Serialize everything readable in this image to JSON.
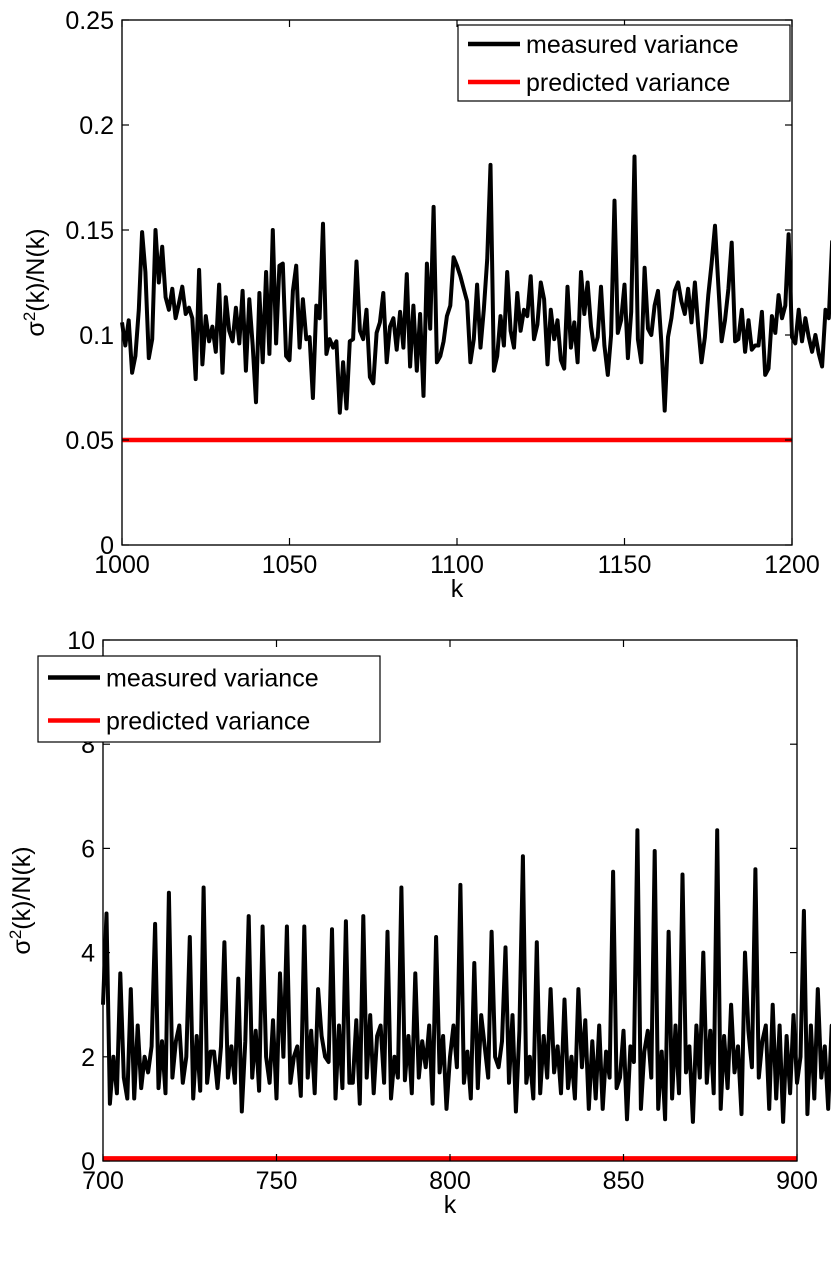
{
  "chart_data": [
    {
      "type": "line",
      "xlabel": "k",
      "ylabel_main": "σ",
      "ylabel_sup": "2",
      "ylabel_rest": "(k)/N(k)",
      "xlim": [
        1000,
        1200
      ],
      "ylim": [
        0,
        0.25
      ],
      "xticks": [
        1000,
        1050,
        1100,
        1150,
        1200
      ],
      "yticks": [
        0,
        0.05,
        0.1,
        0.15,
        0.2,
        0.25
      ],
      "ytick_labels": [
        "0",
        "0.05",
        "0.1",
        "0.15",
        "0.2",
        "0.25"
      ],
      "legend_position": "top-right",
      "series": [
        {
          "name": "measured variance",
          "color": "#000000",
          "x_start": 1000,
          "x_step": 1,
          "values": [
            0.106,
            0.095,
            0.107,
            0.082,
            0.09,
            0.112,
            0.149,
            0.13,
            0.089,
            0.098,
            0.15,
            0.125,
            0.142,
            0.118,
            0.112,
            0.122,
            0.108,
            0.115,
            0.123,
            0.11,
            0.113,
            0.108,
            0.079,
            0.131,
            0.086,
            0.109,
            0.097,
            0.104,
            0.092,
            0.124,
            0.082,
            0.118,
            0.102,
            0.097,
            0.113,
            0.096,
            0.121,
            0.083,
            0.117,
            0.095,
            0.068,
            0.12,
            0.087,
            0.13,
            0.091,
            0.15,
            0.096,
            0.133,
            0.134,
            0.09,
            0.088,
            0.121,
            0.133,
            0.094,
            0.117,
            0.098,
            0.099,
            0.07,
            0.114,
            0.108,
            0.153,
            0.091,
            0.098,
            0.094,
            0.097,
            0.063,
            0.087,
            0.065,
            0.097,
            0.098,
            0.135,
            0.102,
            0.098,
            0.112,
            0.08,
            0.077,
            0.101,
            0.106,
            0.12,
            0.087,
            0.104,
            0.108,
            0.093,
            0.111,
            0.094,
            0.129,
            0.085,
            0.114,
            0.083,
            0.11,
            0.071,
            0.134,
            0.103,
            0.161,
            0.087,
            0.09,
            0.097,
            0.109,
            0.114,
            0.137,
            0.133,
            0.128,
            0.122,
            0.116,
            0.087,
            0.098,
            0.124,
            0.094,
            0.112,
            0.136,
            0.181,
            0.083,
            0.09,
            0.109,
            0.095,
            0.13,
            0.102,
            0.094,
            0.12,
            0.102,
            0.112,
            0.109,
            0.128,
            0.098,
            0.105,
            0.125,
            0.117,
            0.086,
            0.112,
            0.098,
            0.107,
            0.088,
            0.084,
            0.123,
            0.094,
            0.106,
            0.087,
            0.13,
            0.11,
            0.125,
            0.104,
            0.093,
            0.099,
            0.123,
            0.095,
            0.081,
            0.1,
            0.164,
            0.101,
            0.107,
            0.124,
            0.089,
            0.111,
            0.185,
            0.098,
            0.087,
            0.132,
            0.103,
            0.1,
            0.114,
            0.121,
            0.096,
            0.064,
            0.099,
            0.108,
            0.121,
            0.125,
            0.116,
            0.11,
            0.122,
            0.106,
            0.125,
            0.104,
            0.087,
            0.099,
            0.119,
            0.134,
            0.152,
            0.124,
            0.097,
            0.107,
            0.122,
            0.144,
            0.097,
            0.098,
            0.112,
            0.092,
            0.107,
            0.093,
            0.095,
            0.095,
            0.111,
            0.081,
            0.084,
            0.109,
            0.101,
            0.119,
            0.108,
            0.114,
            0.148,
            0.099,
            0.096,
            0.112,
            0.097,
            0.108,
            0.099,
            0.092,
            0.1,
            0.091,
            0.085,
            0.112,
            0.108,
            0.145
          ]
        },
        {
          "name": "predicted variance",
          "color": "#ff0000",
          "x": [
            1000,
            1200
          ],
          "values": [
            0.05,
            0.05
          ]
        }
      ]
    },
    {
      "type": "line",
      "xlabel": "k",
      "ylabel_main": "σ",
      "ylabel_sup": "2",
      "ylabel_rest": "(k)/N(k)",
      "xlim": [
        700,
        900
      ],
      "ylim": [
        0,
        10
      ],
      "xticks": [
        700,
        750,
        800,
        850,
        900
      ],
      "yticks": [
        0,
        2,
        4,
        6,
        8,
        10
      ],
      "ytick_labels": [
        "0",
        "2",
        "4",
        "6",
        "8",
        "10"
      ],
      "legend_position": "top-left",
      "series": [
        {
          "name": "measured variance",
          "color": "#000000",
          "x_start": 700,
          "x_step": 1,
          "values": [
            3.0,
            4.75,
            1.1,
            2.0,
            1.3,
            3.6,
            1.6,
            1.2,
            3.3,
            1.2,
            2.6,
            1.4,
            2.0,
            1.7,
            2.2,
            4.55,
            1.4,
            2.3,
            1.3,
            5.15,
            1.6,
            2.3,
            2.6,
            1.5,
            2.0,
            4.3,
            1.2,
            2.4,
            1.35,
            5.25,
            1.5,
            2.1,
            2.1,
            1.4,
            2.2,
            4.2,
            1.6,
            2.2,
            1.5,
            3.5,
            0.95,
            2.3,
            4.7,
            1.6,
            2.5,
            1.35,
            4.5,
            2.0,
            1.5,
            2.7,
            1.2,
            3.6,
            2.0,
            4.5,
            1.5,
            2.0,
            2.2,
            1.25,
            4.5,
            1.6,
            2.5,
            1.3,
            3.3,
            2.4,
            2.0,
            1.9,
            4.45,
            1.2,
            2.6,
            1.4,
            4.6,
            1.5,
            1.5,
            2.7,
            1.1,
            4.7,
            1.6,
            2.8,
            1.3,
            2.4,
            2.6,
            1.5,
            4.4,
            1.2,
            2.0,
            1.6,
            5.25,
            1.55,
            2.4,
            1.3,
            3.6,
            1.6,
            2.3,
            1.8,
            2.6,
            1.1,
            4.3,
            1.7,
            2.4,
            1.0,
            2.0,
            2.6,
            1.8,
            5.3,
            1.5,
            2.1,
            1.2,
            3.8,
            1.4,
            2.8,
            2.2,
            1.6,
            4.4,
            2.0,
            1.8,
            2.3,
            4.1,
            1.5,
            2.8,
            0.95,
            2.5,
            5.85,
            1.5,
            2.0,
            1.2,
            4.2,
            1.3,
            2.4,
            1.6,
            3.3,
            1.7,
            2.2,
            1.3,
            3.1,
            1.4,
            2.0,
            1.2,
            3.3,
            1.8,
            2.7,
            1.0,
            2.3,
            1.2,
            2.6,
            1.0,
            2.1,
            1.6,
            5.55,
            1.4,
            1.6,
            2.5,
            0.8,
            2.2,
            1.9,
            6.35,
            1.0,
            2.1,
            2.5,
            1.6,
            5.95,
            1.0,
            2.1,
            0.8,
            4.4,
            1.2,
            2.6,
            1.3,
            5.5,
            1.7,
            2.2,
            0.75,
            2.6,
            1.6,
            4.0,
            1.5,
            2.5,
            1.3,
            6.35,
            1.0,
            2.4,
            1.4,
            3.0,
            1.7,
            2.2,
            0.9,
            4.0,
            2.5,
            1.8,
            5.6,
            1.6,
            2.3,
            2.6,
            1.0,
            3.0,
            1.2,
            2.6,
            0.75,
            2.4,
            1.3,
            2.8,
            1.5,
            2.0,
            4.8,
            0.9,
            2.6,
            1.2,
            3.3,
            1.6,
            2.2,
            1.0,
            2.6,
            1.5,
            3.5,
            0.85,
            2.2,
            1.2,
            2.0,
            1.1,
            2.0,
            1.3,
            2.6,
            1.5,
            2.5,
            1.4,
            4.1,
            1.6,
            2.2,
            1.2
          ]
        },
        {
          "name": "predicted variance",
          "color": "#ff0000",
          "x": [
            700,
            900
          ],
          "values": [
            0.05,
            0.05
          ]
        }
      ]
    }
  ]
}
